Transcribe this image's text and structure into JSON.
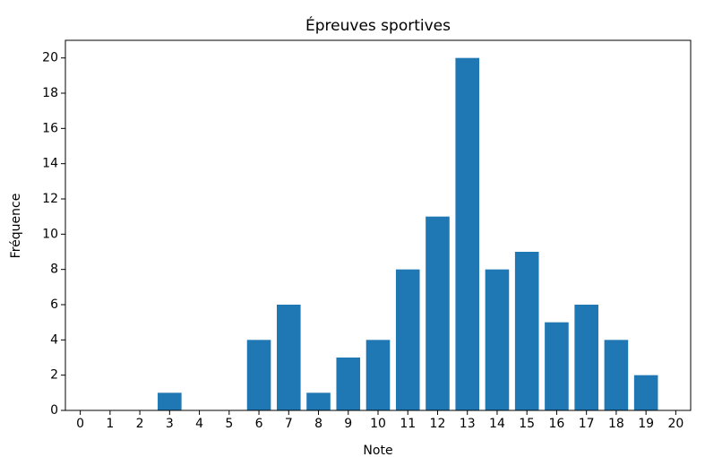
{
  "chart_data": {
    "type": "bar",
    "title": "Épreuves sportives",
    "x_label": "Note",
    "y_label": "Fréquence",
    "x": [
      0,
      1,
      2,
      3,
      4,
      5,
      6,
      7,
      8,
      9,
      10,
      11,
      12,
      13,
      14,
      15,
      16,
      17,
      18,
      19,
      20
    ],
    "values": [
      0,
      0,
      0,
      1,
      0,
      0,
      4,
      6,
      1,
      3,
      4,
      8,
      11,
      20,
      8,
      9,
      5,
      6,
      4,
      2,
      0
    ],
    "color": "#1f77b4",
    "xlim": [
      -0.5,
      20.5
    ],
    "xticks": [
      0,
      1,
      2,
      3,
      4,
      5,
      6,
      7,
      8,
      9,
      10,
      11,
      12,
      13,
      14,
      15,
      16,
      17,
      18,
      19,
      20
    ],
    "ylim": [
      0,
      21
    ],
    "yticks": [
      0,
      2,
      4,
      6,
      8,
      10,
      12,
      14,
      16,
      18,
      20
    ],
    "grid": false
  }
}
